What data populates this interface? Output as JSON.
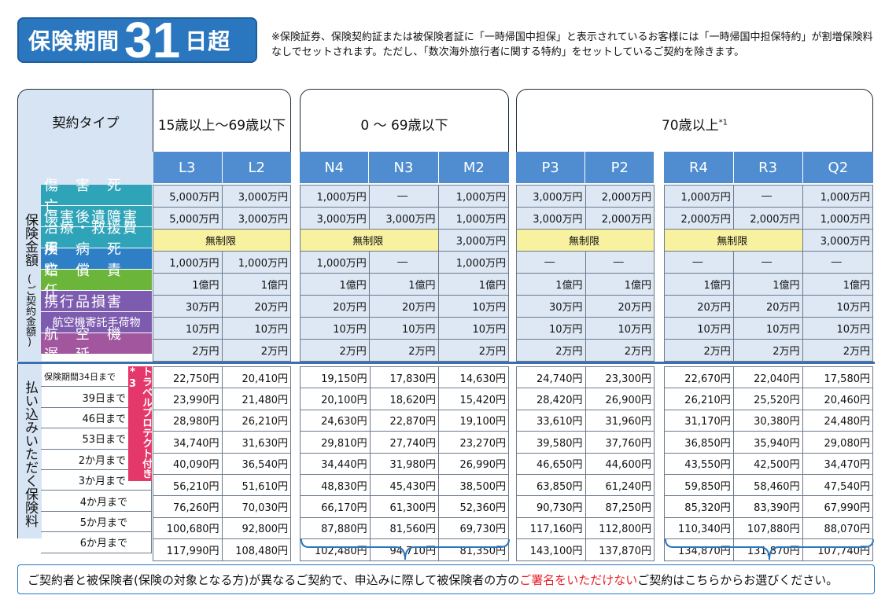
{
  "badge": {
    "prefix": "保険期間",
    "number": "31",
    "suffix": "日超"
  },
  "note": "※保険証券、保険契約証または被保険者証に「一時帰国中担保」と表示されているお客様には「一時帰国中担保特約」が割増保険料なしでセットされます。ただし、「数次海外旅行者に関する特約」をセットしているご契約を除きます。",
  "contract_type": "契約タイプ",
  "age_groups": [
    "15歳以上～69歳以下",
    "0 ～ 69歳以下",
    "70歳以上",
    "*1"
  ],
  "codes": [
    "L3",
    "L2",
    "N4",
    "N3",
    "M2",
    "P3",
    "P2",
    "R4",
    "R3",
    "Q2"
  ],
  "coverage_side": "保険金額",
  "coverage_side_sub": "(ご契約金額)",
  "coverage_labels": [
    "傷　害　死　亡",
    "傷害後遺障害",
    "治療・救援費用",
    "疾　病　死　亡",
    "賠　償　責　任",
    "携行品損害",
    "航空機寄託手荷物",
    "航　空　機　遅　延"
  ],
  "coverage_colors": [
    "#2fa4b8",
    "#2fa4b8",
    "#2fa4b8",
    "#2e7fc6",
    "#6bb53a",
    "#7d5cb0",
    "#7d5cb0",
    "#a1569e"
  ],
  "coverage_rows": [
    [
      "5,000万円",
      "3,000万円",
      "1,000万円",
      "―",
      "1,000万円",
      "3,000万円",
      "2,000万円",
      "1,000万円",
      "―",
      "1,000万円"
    ],
    [
      "5,000万円",
      "3,000万円",
      "3,000万円",
      "3,000万円",
      "1,000万円",
      "3,000万円",
      "2,000万円",
      "2,000万円",
      "2,000万円",
      "1,000万円"
    ],
    [
      "無制限",
      "無制限",
      "3,000万円",
      "無制限",
      "無制限",
      "3,000万円"
    ],
    [
      "1,000万円",
      "1,000万円",
      "1,000万円",
      "―",
      "1,000万円",
      "―",
      "―",
      "―",
      "―",
      "―"
    ],
    [
      "1億円",
      "1億円",
      "1億円",
      "1億円",
      "1億円",
      "1億円",
      "1億円",
      "1億円",
      "1億円",
      "1億円"
    ],
    [
      "30万円",
      "20万円",
      "20万円",
      "20万円",
      "10万円",
      "30万円",
      "20万円",
      "20万円",
      "20万円",
      "10万円"
    ],
    [
      "10万円",
      "10万円",
      "10万円",
      "10万円",
      "10万円",
      "10万円",
      "10万円",
      "10万円",
      "10万円",
      "10万円"
    ],
    [
      "2万円",
      "2万円",
      "2万円",
      "2万円",
      "2万円",
      "2万円",
      "2万円",
      "2万円",
      "2万円",
      "2万円"
    ]
  ],
  "premium_side": "払い込みいただく保険料",
  "premium_labels": [
    "保険期間34日まで",
    "39日まで",
    "46日まで",
    "53日まで",
    "2か月まで",
    "3か月まで",
    "4か月まで",
    "5か月まで",
    "6か月まで"
  ],
  "travel_protect": "トラベルプロテクト付き*3",
  "premium_rows": [
    [
      "22,750円",
      "20,410円",
      "19,150円",
      "17,830円",
      "14,630円",
      "24,740円",
      "23,300円",
      "22,670円",
      "22,040円",
      "17,580円"
    ],
    [
      "23,990円",
      "21,480円",
      "20,100円",
      "18,620円",
      "15,420円",
      "28,420円",
      "26,900円",
      "26,210円",
      "25,520円",
      "20,460円"
    ],
    [
      "28,980円",
      "26,210円",
      "24,630円",
      "22,870円",
      "19,100円",
      "33,610円",
      "31,960円",
      "31,170円",
      "30,380円",
      "24,480円"
    ],
    [
      "34,740円",
      "31,630円",
      "29,810円",
      "27,740円",
      "23,270円",
      "39,580円",
      "37,760円",
      "36,850円",
      "35,940円",
      "29,080円"
    ],
    [
      "40,090円",
      "36,540円",
      "34,440円",
      "31,980円",
      "26,990円",
      "46,650円",
      "44,600円",
      "43,550円",
      "42,500円",
      "34,470円"
    ],
    [
      "56,210円",
      "51,610円",
      "48,830円",
      "45,430円",
      "38,500円",
      "63,850円",
      "61,240円",
      "59,850円",
      "58,460円",
      "47,540円"
    ],
    [
      "76,260円",
      "70,030円",
      "66,170円",
      "61,300円",
      "52,360円",
      "90,730円",
      "87,250円",
      "85,320円",
      "83,390円",
      "67,990円"
    ],
    [
      "100,680円",
      "92,800円",
      "87,880円",
      "81,560円",
      "69,730円",
      "117,160円",
      "112,800円",
      "110,340円",
      "107,880円",
      "88,070円"
    ],
    [
      "117,990円",
      "108,480円",
      "102,480円",
      "94,710円",
      "81,350円",
      "143,100円",
      "137,870円",
      "134,870円",
      "131,870円",
      "107,740円"
    ]
  ],
  "bottom_note": {
    "pre": "ご契約者と被保険者(保険の対象となる方)が異なるご契約で、申込みに際して被保険者の方の",
    "red": "ご署名をいただけない",
    "post": "ご契約はこちらからお選びください。"
  }
}
